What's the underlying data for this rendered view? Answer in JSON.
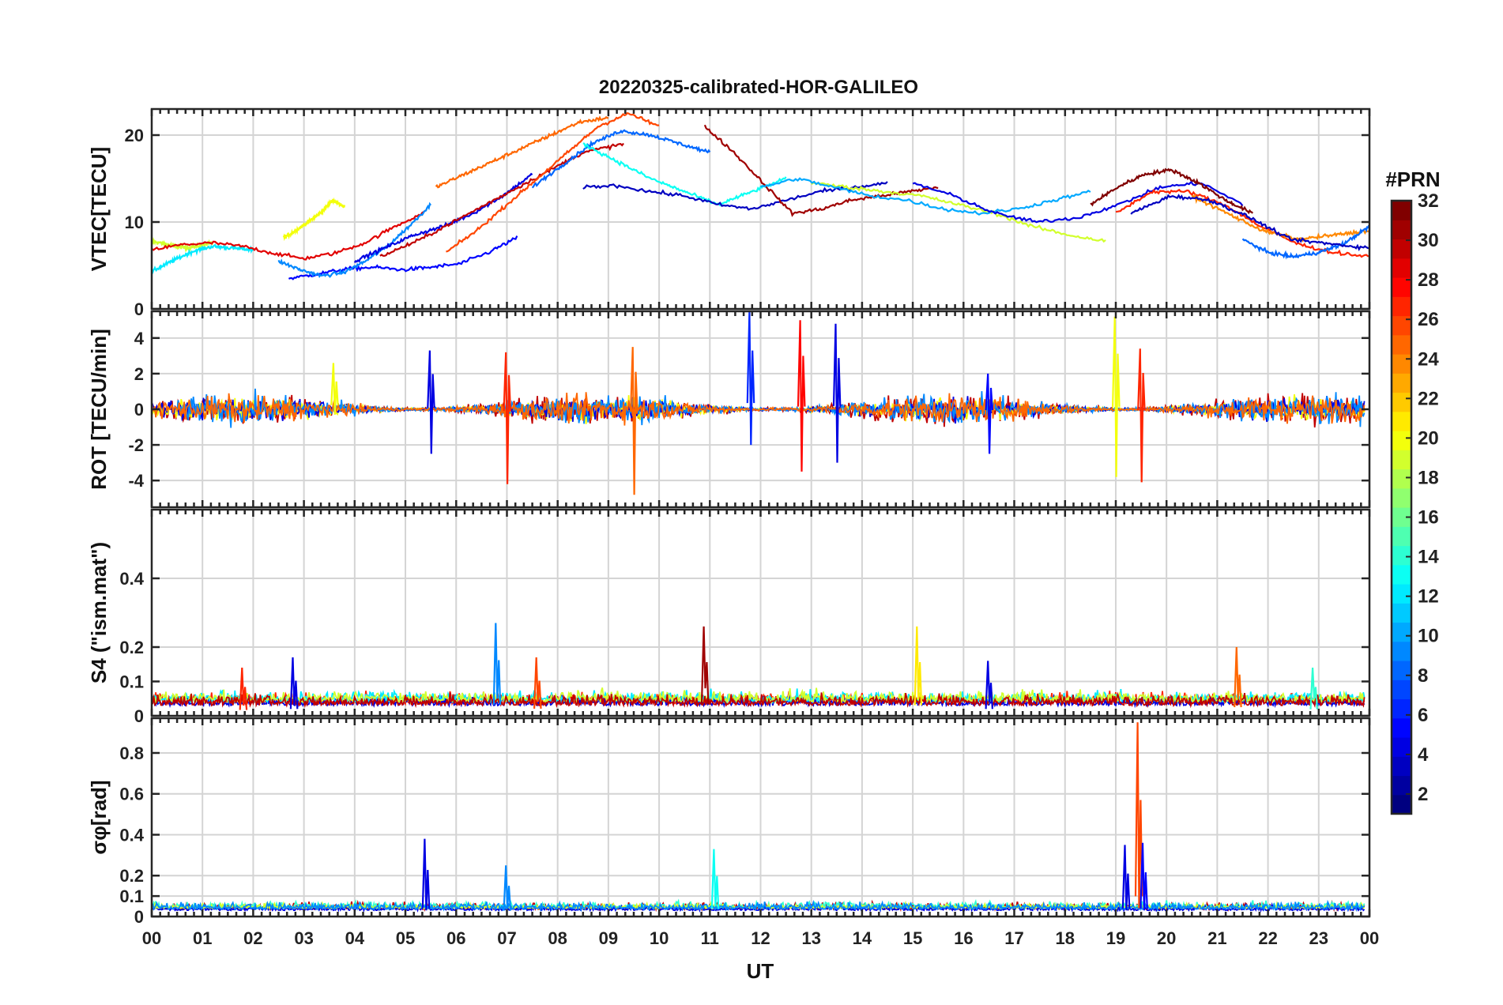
{
  "chart_data": {
    "type": "line",
    "title": "20220325-calibrated-HOR-GALILEO",
    "xlabel": "UT",
    "x_tick_labels": [
      "00",
      "01",
      "02",
      "03",
      "04",
      "05",
      "06",
      "07",
      "08",
      "09",
      "10",
      "11",
      "12",
      "13",
      "14",
      "15",
      "16",
      "17",
      "18",
      "19",
      "20",
      "21",
      "22",
      "23",
      "00"
    ],
    "xlim": [
      0,
      24
    ],
    "colorbar": {
      "title": "#PRN",
      "range": [
        1,
        32
      ],
      "ticks": [
        "2",
        "4",
        "6",
        "8",
        "10",
        "12",
        "14",
        "16",
        "18",
        "20",
        "22",
        "24",
        "26",
        "28",
        "30",
        "32"
      ],
      "tick_values": [
        2,
        4,
        6,
        8,
        10,
        12,
        14,
        16,
        18,
        20,
        22,
        24,
        26,
        28,
        30,
        32
      ],
      "colormap": "jet"
    },
    "panels": [
      {
        "id": "vtec",
        "ylabel": "VTEC[TECU]",
        "ylim": [
          0,
          23
        ],
        "yticks": [
          0,
          10,
          20
        ],
        "ytick_labels": [
          "0",
          "10",
          "20"
        ],
        "series": [
          {
            "prn": 19,
            "start": 0.0,
            "end": 1.2,
            "values": [
              7.8,
              7.5,
              7.2,
              7.0,
              7.3,
              7.6
            ]
          },
          {
            "prn": 20,
            "start": 2.6,
            "end": 3.8,
            "values": [
              8.2,
              9.0,
              10.0,
              11.0,
              12.5,
              11.8
            ]
          },
          {
            "prn": 12,
            "start": 0.0,
            "end": 2.0,
            "values": [
              4.3,
              5.5,
              6.6,
              7.2,
              7.0,
              6.8
            ]
          },
          {
            "prn": 5,
            "start": 2.7,
            "end": 7.2,
            "values": [
              3.5,
              4.0,
              4.6,
              4.8,
              4.5,
              4.8,
              5.2,
              6.5,
              8.2
            ]
          },
          {
            "prn": 29,
            "start": 0.0,
            "end": 5.4,
            "values": [
              6.8,
              7.4,
              7.6,
              7.2,
              6.4,
              5.8,
              6.4,
              7.6,
              9.5,
              11.2
            ]
          },
          {
            "prn": 9,
            "start": 2.5,
            "end": 5.5,
            "values": [
              5.5,
              4.5,
              3.8,
              4.2,
              5.5,
              7.2,
              9.5,
              12.0
            ]
          },
          {
            "prn": 4,
            "start": 4.0,
            "end": 7.5,
            "values": [
              5.5,
              7.0,
              8.5,
              9.5,
              11.0,
              13.0,
              15.5
            ]
          },
          {
            "prn": 25,
            "start": 5.6,
            "end": 9.0,
            "values": [
              14.0,
              15.5,
              17.0,
              18.5,
              20.0,
              21.5,
              22.0
            ]
          },
          {
            "prn": 30,
            "start": 4.5,
            "end": 9.3,
            "values": [
              6.0,
              8.0,
              10.5,
              13.0,
              15.5,
              18.0,
              19.0
            ]
          },
          {
            "prn": 26,
            "start": 5.8,
            "end": 10.0,
            "values": [
              6.5,
              9.0,
              12.0,
              15.0,
              18.0,
              21.0,
              22.5,
              21.0
            ]
          },
          {
            "prn": 8,
            "start": 7.5,
            "end": 11.0,
            "values": [
              14.0,
              16.5,
              19.0,
              20.5,
              20.0,
              19.0,
              18.0
            ]
          },
          {
            "prn": 13,
            "start": 8.5,
            "end": 12.5,
            "values": [
              19.0,
              17.0,
              15.0,
              13.5,
              12.0,
              13.5,
              15.0
            ]
          },
          {
            "prn": 3,
            "start": 8.5,
            "end": 14.5,
            "values": [
              14.0,
              14.2,
              13.5,
              13.0,
              12.0,
              11.5,
              12.5,
              13.5,
              14.0,
              14.5
            ]
          },
          {
            "prn": 31,
            "start": 10.9,
            "end": 15.5,
            "values": [
              21.0,
              18.0,
              14.5,
              11.0,
              11.5,
              12.5,
              13.0,
              13.5,
              14.0
            ]
          },
          {
            "prn": 19,
            "start": 13.0,
            "end": 18.8,
            "values": [
              14.5,
              14.0,
              13.5,
              13.0,
              12.0,
              11.0,
              9.5,
              8.5,
              7.8
            ]
          },
          {
            "prn": 10,
            "start": 12.0,
            "end": 18.5,
            "values": [
              14.0,
              15.0,
              14.0,
              13.0,
              12.5,
              11.5,
              11.0,
              11.5,
              12.5,
              13.5
            ]
          },
          {
            "prn": 4,
            "start": 15.0,
            "end": 21.5,
            "values": [
              14.5,
              13.0,
              11.0,
              10.0,
              10.5,
              12.0,
              14.0,
              14.5,
              12.0
            ]
          },
          {
            "prn": 32,
            "start": 18.5,
            "end": 21.7,
            "values": [
              12.0,
              14.0,
              15.5,
              16.0,
              14.5,
              12.5,
              11.0
            ]
          },
          {
            "prn": 27,
            "start": 19.0,
            "end": 24.0,
            "values": [
              11.0,
              13.5,
              13.5,
              12.0,
              9.5,
              7.5,
              6.5,
              6.0
            ]
          },
          {
            "prn": 24,
            "start": 20.5,
            "end": 24.0,
            "values": [
              13.0,
              11.0,
              9.0,
              8.0,
              8.5,
              9.0
            ]
          },
          {
            "prn": 8,
            "start": 21.5,
            "end": 24.0,
            "values": [
              8.0,
              6.5,
              6.0,
              6.5,
              7.5,
              9.5
            ]
          },
          {
            "prn": 3,
            "start": 19.3,
            "end": 24.0,
            "values": [
              11.0,
              13.0,
              12.5,
              10.5,
              8.0,
              7.5,
              7.0
            ]
          }
        ]
      },
      {
        "id": "rot",
        "ylabel": "ROT [TECU/min]",
        "ylim": [
          -5.5,
          5.5
        ],
        "yticks": [
          -4,
          -2,
          0,
          2,
          4
        ],
        "ytick_labels": [
          "-4",
          "-2",
          "0",
          "2",
          "4"
        ],
        "noise_series": [
          {
            "prn": 30,
            "start": 0.0,
            "end": 23.9,
            "amp": 0.4
          },
          {
            "prn": 20,
            "start": 0.0,
            "end": 23.9,
            "amp": 0.3
          },
          {
            "prn": 4,
            "start": 0.0,
            "end": 23.9,
            "amp": 0.3
          },
          {
            "prn": 9,
            "start": 0.5,
            "end": 23.9,
            "amp": 0.4
          },
          {
            "prn": 25,
            "start": 0.0,
            "end": 23.9,
            "amp": 0.35
          }
        ],
        "spikes": [
          {
            "x": 3.6,
            "min": -0.3,
            "max": 2.6,
            "prn": 20
          },
          {
            "x": 5.5,
            "min": -2.5,
            "max": 3.3,
            "prn": 4
          },
          {
            "x": 7.0,
            "min": -4.2,
            "max": 3.2,
            "prn": 27
          },
          {
            "x": 9.5,
            "min": -4.8,
            "max": 3.5,
            "prn": 25
          },
          {
            "x": 11.8,
            "min": -2.0,
            "max": 5.5,
            "prn": 6
          },
          {
            "x": 12.8,
            "min": -3.5,
            "max": 5.0,
            "prn": 28
          },
          {
            "x": 13.5,
            "min": -3.0,
            "max": 4.8,
            "prn": 4
          },
          {
            "x": 16.5,
            "min": -2.5,
            "max": 2.0,
            "prn": 5
          },
          {
            "x": 19.0,
            "min": -3.8,
            "max": 5.2,
            "prn": 20
          },
          {
            "x": 19.5,
            "min": -4.1,
            "max": 3.4,
            "prn": 27
          }
        ]
      },
      {
        "id": "s4",
        "ylabel": "S4 (\"ism.mat\")",
        "ylim": [
          0,
          0.6
        ],
        "yticks": [
          0,
          0.1,
          0.2,
          0.4
        ],
        "ytick_labels": [
          "0",
          "0.1",
          "0.2",
          "0.4"
        ],
        "noise_series": [
          {
            "prn": 27,
            "start": 0.0,
            "end": 23.9,
            "base": 0.035,
            "amp": 0.03
          },
          {
            "prn": 4,
            "start": 0.0,
            "end": 23.9,
            "base": 0.03,
            "amp": 0.025
          },
          {
            "prn": 12,
            "start": 0.0,
            "end": 23.9,
            "base": 0.04,
            "amp": 0.03
          },
          {
            "prn": 19,
            "start": 0.0,
            "end": 23.9,
            "base": 0.04,
            "amp": 0.03
          },
          {
            "prn": 30,
            "start": 0.0,
            "end": 23.9,
            "base": 0.03,
            "amp": 0.03
          }
        ],
        "spikes": [
          {
            "x": 1.8,
            "min": 0.03,
            "max": 0.14,
            "prn": 27
          },
          {
            "x": 2.8,
            "min": 0.03,
            "max": 0.17,
            "prn": 4
          },
          {
            "x": 6.8,
            "min": 0.05,
            "max": 0.27,
            "prn": 9
          },
          {
            "x": 7.6,
            "min": 0.04,
            "max": 0.17,
            "prn": 26
          },
          {
            "x": 10.9,
            "min": 0.08,
            "max": 0.26,
            "prn": 31
          },
          {
            "x": 15.1,
            "min": 0.05,
            "max": 0.26,
            "prn": 21
          },
          {
            "x": 16.5,
            "min": 0.04,
            "max": 0.16,
            "prn": 4
          },
          {
            "x": 21.4,
            "min": 0.05,
            "max": 0.2,
            "prn": 25
          },
          {
            "x": 22.9,
            "min": 0.05,
            "max": 0.14,
            "prn": 14
          }
        ]
      },
      {
        "id": "sigphi",
        "ylabel": "σφ[rad]",
        "ylim": [
          0,
          0.97
        ],
        "yticks": [
          0,
          0.1,
          0.2,
          0.4,
          0.6,
          0.8
        ],
        "ytick_labels": [
          "0",
          "0.1",
          "0.2",
          "0.4",
          "0.6",
          "0.8"
        ],
        "noise_series": [
          {
            "prn": 30,
            "start": 0.0,
            "end": 23.9,
            "base": 0.035,
            "amp": 0.03
          },
          {
            "prn": 14,
            "start": 0.0,
            "end": 23.9,
            "base": 0.04,
            "amp": 0.03
          },
          {
            "prn": 4,
            "start": 0.0,
            "end": 23.9,
            "base": 0.03,
            "amp": 0.02
          },
          {
            "prn": 19,
            "start": 0.0,
            "end": 23.9,
            "base": 0.04,
            "amp": 0.02
          },
          {
            "prn": 9,
            "start": 0.0,
            "end": 23.9,
            "base": 0.035,
            "amp": 0.03
          }
        ],
        "spikes": [
          {
            "x": 5.4,
            "min": 0.03,
            "max": 0.38,
            "prn": 4
          },
          {
            "x": 7.0,
            "min": 0.04,
            "max": 0.25,
            "prn": 9
          },
          {
            "x": 11.1,
            "min": 0.05,
            "max": 0.33,
            "prn": 13
          },
          {
            "x": 19.2,
            "min": 0.03,
            "max": 0.35,
            "prn": 4
          },
          {
            "x": 19.45,
            "min": 0.04,
            "max": 0.95,
            "prn": 26
          },
          {
            "x": 19.55,
            "min": 0.03,
            "max": 0.36,
            "prn": 5
          }
        ]
      }
    ]
  }
}
